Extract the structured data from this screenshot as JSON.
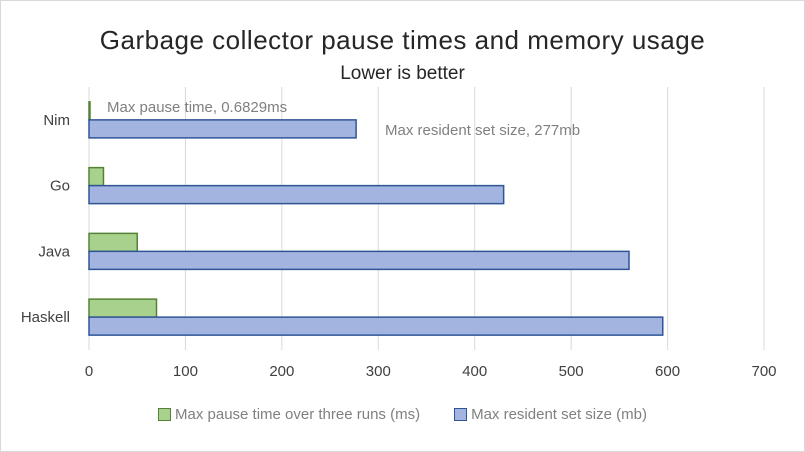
{
  "chart_data": {
    "type": "bar",
    "orientation": "horizontal",
    "title": "Garbage collector pause times and memory usage",
    "subtitle": "Lower is better",
    "categories": [
      "Nim",
      "Go",
      "Java",
      "Haskell"
    ],
    "series": [
      {
        "name": "Max pause time over three runs (ms)",
        "values": [
          0.6829,
          15,
          50,
          70
        ],
        "color": "#a9d18e",
        "border": "#548235"
      },
      {
        "name": "Max resident set size (mb)",
        "values": [
          277,
          430,
          560,
          595
        ],
        "color": "#a4b4e0",
        "border": "#2f5597"
      }
    ],
    "xlim": [
      0,
      700
    ],
    "xticks": [
      "0",
      "100",
      "200",
      "300",
      "400",
      "500",
      "600",
      "700"
    ],
    "grid": true,
    "legend_position": "bottom",
    "annotations": [
      {
        "text": "Max pause time, 0.6829ms",
        "category": "Nim",
        "series": 0
      },
      {
        "text": "Max resident set size, 277mb",
        "category": "Nim",
        "series": 1
      }
    ]
  }
}
